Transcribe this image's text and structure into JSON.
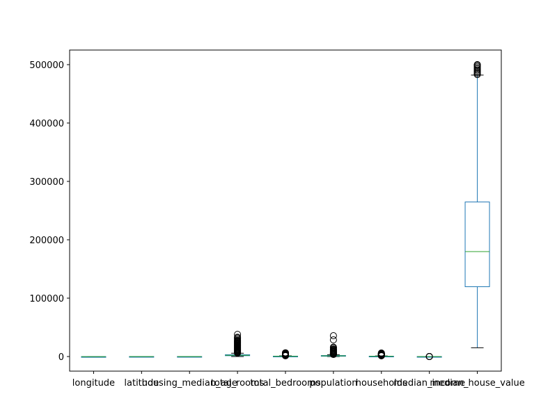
{
  "chart_data": {
    "type": "box",
    "title": "",
    "xlabel": "",
    "ylabel": "",
    "ylim": [
      -25000,
      525000
    ],
    "yticks": [
      0,
      100000,
      200000,
      300000,
      400000,
      500000
    ],
    "ytick_labels": [
      "0",
      "100000",
      "200000",
      "300000",
      "400000",
      "500000"
    ],
    "grid": false,
    "colors": {
      "box": "#1f77b4",
      "median": "#2ca02c",
      "whisker": "#1f77b4",
      "cap": "#000000",
      "flier": "#000000"
    },
    "categories": [
      "longitude",
      "latitude",
      "housing_median_age",
      "total_rooms",
      "total_bedrooms",
      "population",
      "households",
      "median_income",
      "median_house_value"
    ],
    "boxes": [
      {
        "name": "longitude",
        "whislo": -124,
        "q1": -121,
        "med": -118,
        "q3": -118,
        "whishi": -114,
        "fliers": []
      },
      {
        "name": "latitude",
        "whislo": 33,
        "q1": 34,
        "med": 34,
        "q3": 38,
        "whishi": 42,
        "fliers": []
      },
      {
        "name": "housing_median_age",
        "whislo": 1,
        "q1": 18,
        "med": 29,
        "q3": 37,
        "whishi": 52,
        "fliers": []
      },
      {
        "name": "total_rooms",
        "whislo": 2,
        "q1": 1448,
        "med": 2127,
        "q3": 3148,
        "whishi": 5698,
        "fliers": [
          6000,
          7000,
          8000,
          9000,
          10000,
          11000,
          12000,
          13000,
          14000,
          15000,
          16000,
          17000,
          18000,
          19000,
          20000,
          21000,
          22000,
          23000,
          24000,
          25000,
          26000,
          27000,
          28000,
          30000,
          32000,
          33000,
          37937
        ]
      },
      {
        "name": "total_bedrooms",
        "whislo": 1,
        "q1": 296,
        "med": 435,
        "q3": 647,
        "whishi": 1173,
        "fliers": [
          1300,
          1600,
          2000,
          2400,
          2800,
          3200,
          3600,
          4000,
          4400,
          4800,
          5200,
          5600,
          6000,
          6445
        ]
      },
      {
        "name": "population",
        "whislo": 3,
        "q1": 787,
        "med": 1166,
        "q3": 1725,
        "whishi": 3132,
        "fliers": [
          3500,
          4000,
          4500,
          5000,
          5500,
          6000,
          7000,
          8000,
          9000,
          10000,
          11000,
          12000,
          13000,
          15000,
          16000,
          28566,
          35682
        ]
      },
      {
        "name": "households",
        "whislo": 1,
        "q1": 280,
        "med": 409,
        "q3": 605,
        "whishi": 1092,
        "fliers": [
          1200,
          1500,
          1800,
          2200,
          2600,
          3000,
          3500,
          4000,
          4500,
          5000,
          5358,
          6082
        ]
      },
      {
        "name": "median_income",
        "whislo": 0.5,
        "q1": 2.56,
        "med": 3.53,
        "q3": 4.74,
        "whishi": 8.01,
        "fliers": [
          9,
          10,
          11,
          12,
          13,
          14,
          15
        ]
      },
      {
        "name": "median_house_value",
        "whislo": 14999,
        "q1": 119600,
        "med": 179700,
        "q3": 264725,
        "whishi": 482200,
        "fliers": [
          483000,
          485000,
          487000,
          489000,
          491000,
          493000,
          495000,
          497000,
          499000,
          500001
        ]
      }
    ]
  }
}
